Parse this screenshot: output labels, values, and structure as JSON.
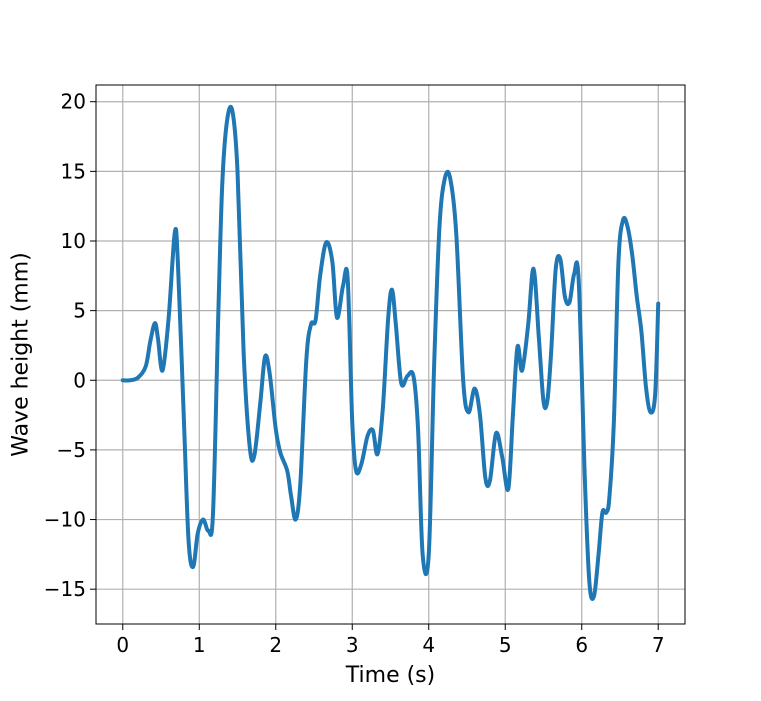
{
  "chart_data": {
    "type": "line",
    "title": "",
    "xlabel": "Time (s)",
    "ylabel": "Wave height (mm)",
    "xlim": [
      -0.35,
      7.35
    ],
    "ylim": [
      -17.5,
      21.2
    ],
    "xticks": [
      0,
      1,
      2,
      3,
      4,
      5,
      6,
      7
    ],
    "xtick_labels": [
      "0",
      "1",
      "2",
      "3",
      "4",
      "5",
      "6",
      "7"
    ],
    "yticks": [
      -15,
      -10,
      -5,
      0,
      5,
      10,
      15,
      20
    ],
    "ytick_labels": [
      "−15",
      "−10",
      "−5",
      "0",
      "5",
      "10",
      "15",
      "20"
    ],
    "grid": true,
    "line_color": "#1f77b4",
    "grid_color": "#b0b0b0",
    "series": [
      {
        "x": [
          0,
          0.1,
          0.2,
          0.3,
          0.36,
          0.42,
          0.46,
          0.52,
          0.6,
          0.68,
          0.72,
          0.8,
          0.86,
          0.92,
          0.98,
          1.05,
          1.12,
          1.18,
          1.25,
          1.3,
          1.36,
          1.43,
          1.5,
          1.58,
          1.66,
          1.72,
          1.8,
          1.86,
          1.92,
          2.0,
          2.06,
          2.15,
          2.2,
          2.26,
          2.32,
          2.4,
          2.46,
          2.52,
          2.58,
          2.66,
          2.74,
          2.8,
          2.88,
          2.94,
          3.0,
          3.05,
          3.12,
          3.2,
          3.27,
          3.33,
          3.4,
          3.47,
          3.52,
          3.57,
          3.64,
          3.72,
          3.8,
          3.86,
          3.92,
          4.0,
          4.07,
          4.14,
          4.21,
          4.28,
          4.36,
          4.45,
          4.52,
          4.6,
          4.67,
          4.74,
          4.8,
          4.88,
          4.96,
          5.04,
          5.1,
          5.16,
          5.22,
          5.3,
          5.37,
          5.44,
          5.5,
          5.55,
          5.6,
          5.66,
          5.72,
          5.78,
          5.84,
          5.9,
          5.96,
          6.04,
          6.1,
          6.16,
          6.22,
          6.27,
          6.32,
          6.36,
          6.42,
          6.48,
          6.54,
          6.6,
          6.66,
          6.72,
          6.78,
          6.84,
          6.9,
          6.96,
          7.0
        ],
        "y": [
          0,
          0,
          0.2,
          1.0,
          2.8,
          4.1,
          3.0,
          0.7,
          4.5,
          10.6,
          8.5,
          -3.0,
          -11.5,
          -13.4,
          -11.0,
          -10.0,
          -10.8,
          -9.5,
          5.0,
          14.0,
          18.5,
          19.4,
          15.0,
          2.0,
          -4.8,
          -5.4,
          -1.5,
          1.7,
          0.5,
          -3.5,
          -5.2,
          -6.5,
          -8.3,
          -10.0,
          -7.5,
          1.5,
          4.0,
          4.3,
          7.5,
          9.9,
          8.5,
          4.5,
          6.8,
          7.3,
          -3.0,
          -6.5,
          -6.0,
          -4.0,
          -3.6,
          -5.3,
          -2.0,
          4.5,
          6.5,
          4.0,
          -0.2,
          0.3,
          0.3,
          -3.5,
          -12.5,
          -12.5,
          1.0,
          11.0,
          14.5,
          14.5,
          10.5,
          0.0,
          -2.3,
          -0.6,
          -2.5,
          -7.0,
          -7.2,
          -3.8,
          -5.5,
          -7.8,
          -2.5,
          2.4,
          0.7,
          4.0,
          8.0,
          3.0,
          -1.5,
          -1.5,
          2.0,
          8.0,
          8.7,
          6.0,
          5.6,
          7.6,
          7.2,
          -7.0,
          -14.5,
          -15.5,
          -12.5,
          -9.5,
          -9.5,
          -8.5,
          -3.0,
          8.5,
          11.5,
          11.0,
          9.0,
          6.0,
          3.5,
          -0.5,
          -2.3,
          -1.0,
          5.5
        ]
      }
    ]
  }
}
